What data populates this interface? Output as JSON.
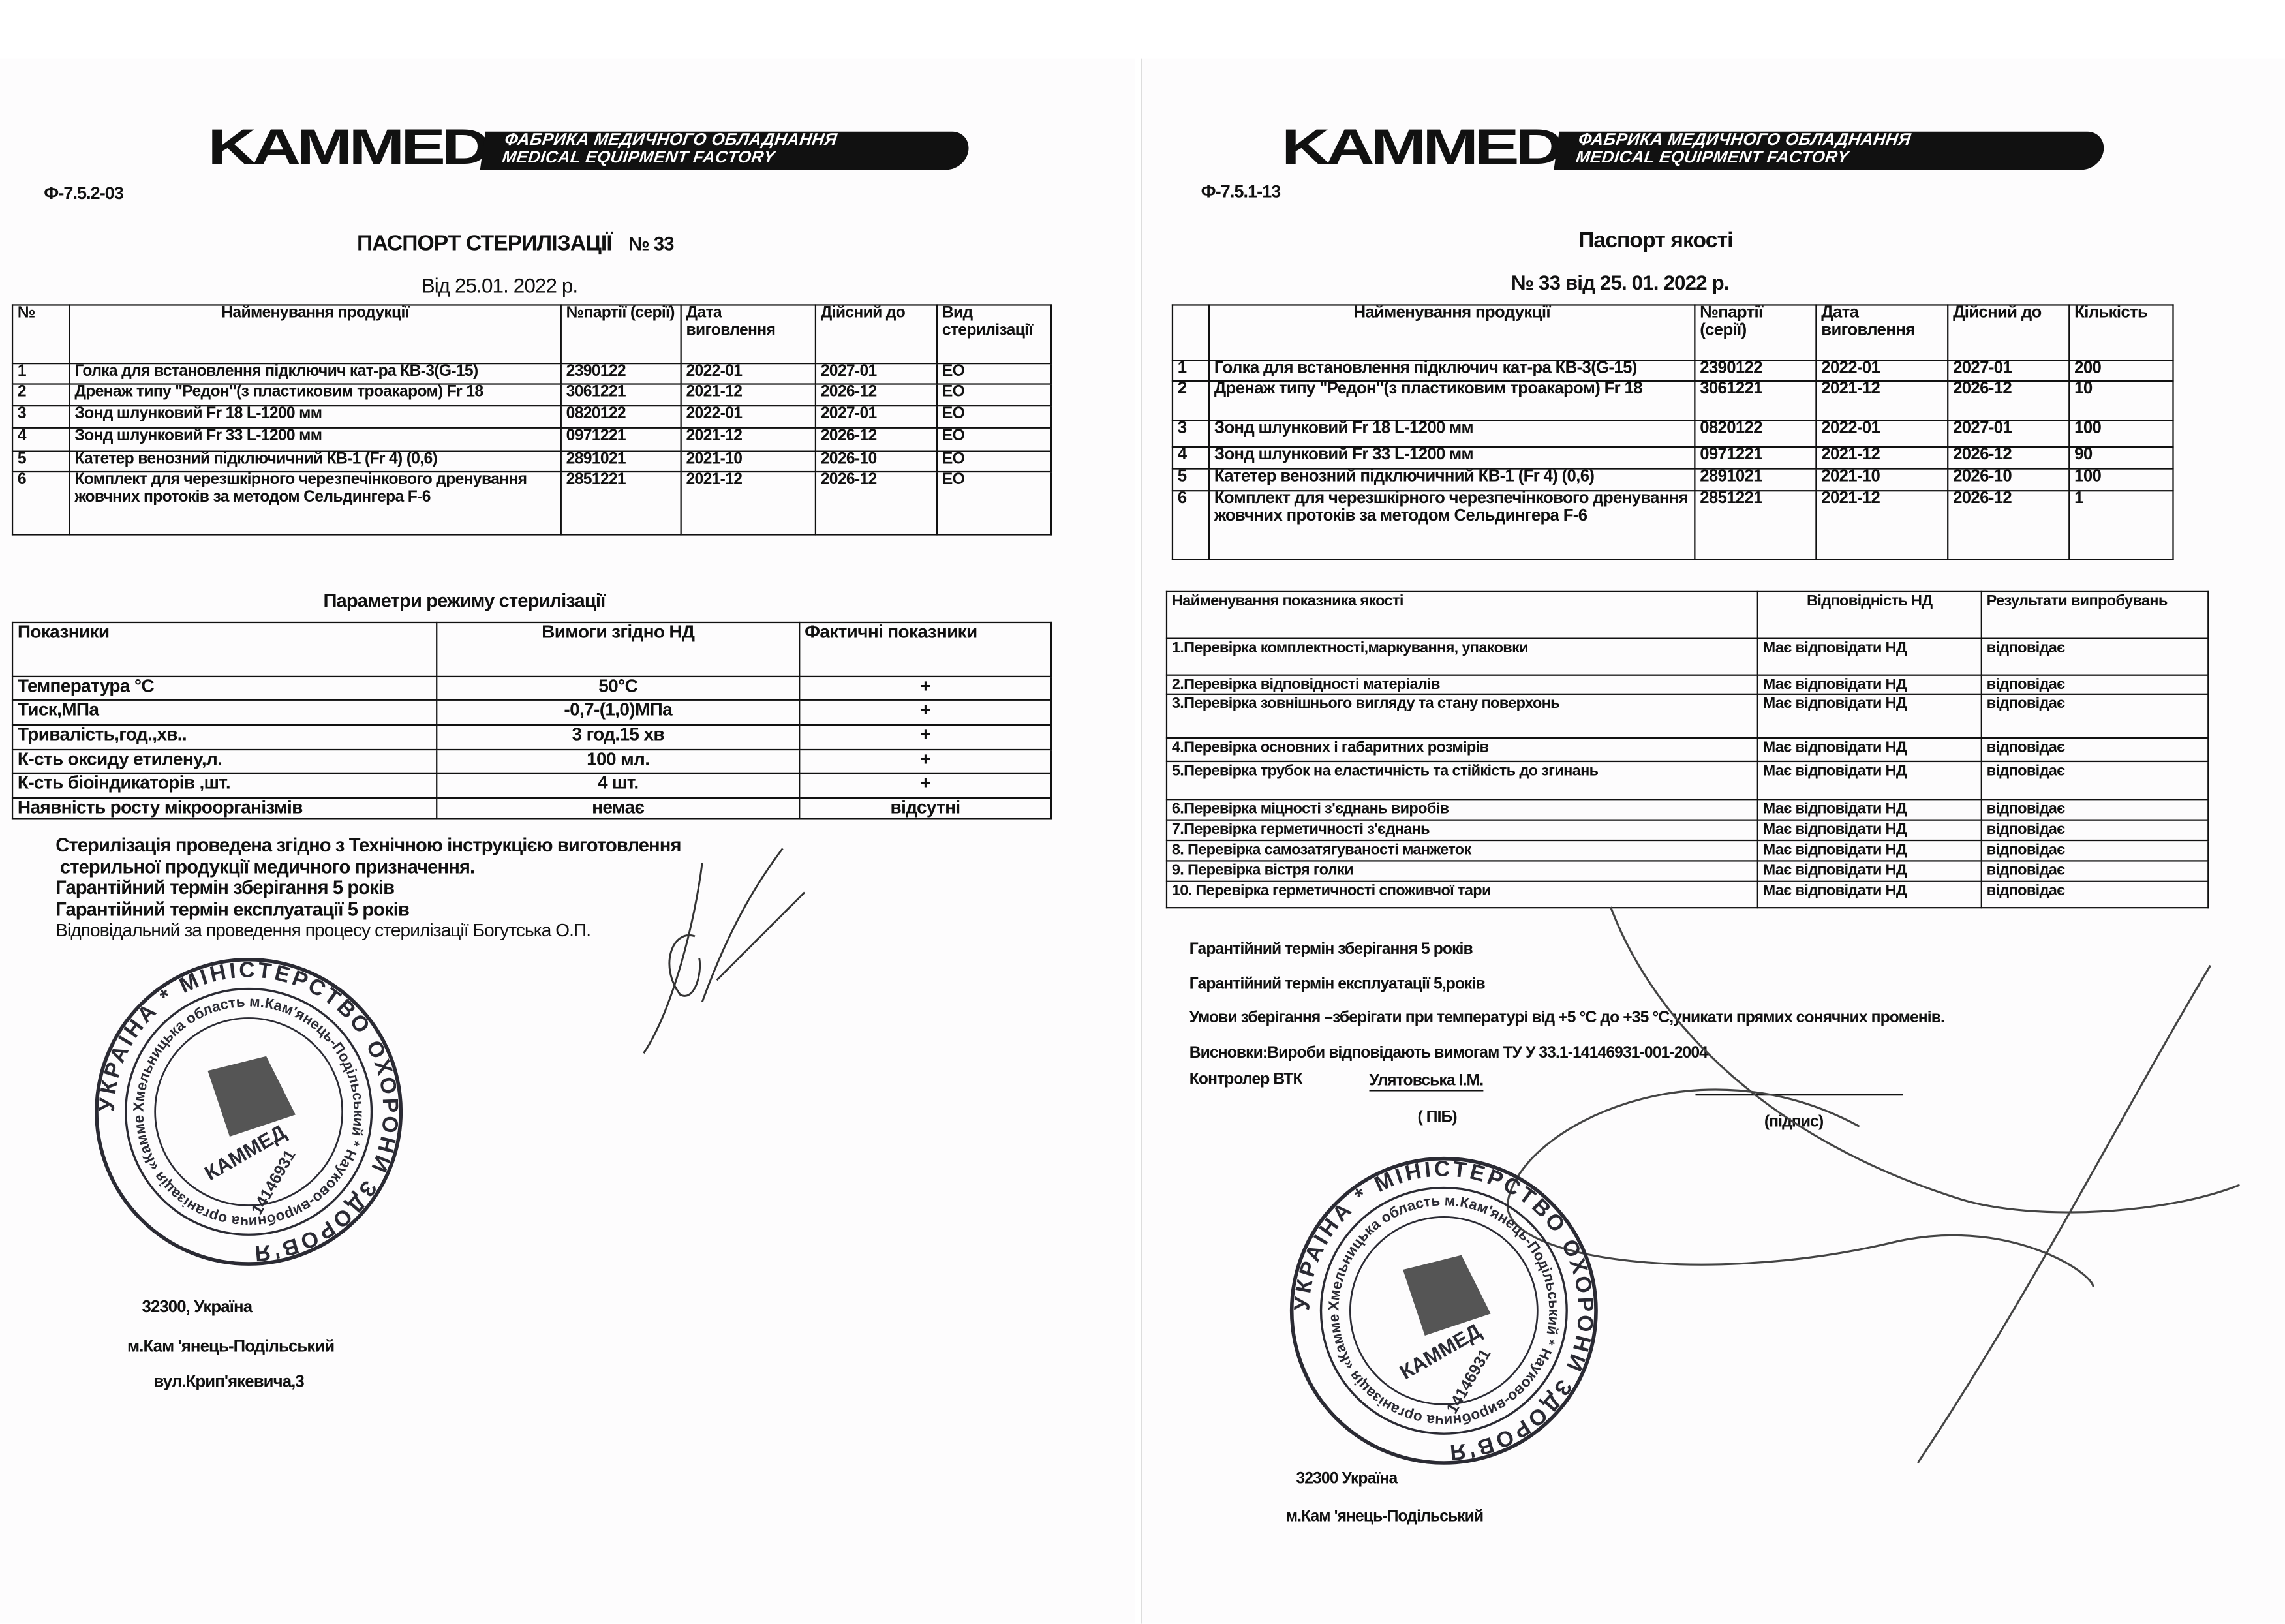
{
  "left": {
    "logo": {
      "brand": "KAMMED",
      "line1": "ФАБРИКА МЕДИЧНОГО ОБЛАДНАННЯ",
      "line2": "MEDICAL EQUIPMENT FACTORY"
    },
    "form_code": "Ф-7.5.2-03",
    "title": "ПАСПОРТ СТЕРИЛІЗАЦІЇ",
    "number": "№ 33",
    "date_line": "Від  25.01. 2022 р.",
    "products_table": {
      "headers": [
        "№",
        "Найменування продукції",
        "№партії (серії)",
        "Дата виговлення",
        "Дійсний до",
        "Вид стерилізації"
      ],
      "rows": [
        [
          "1",
          "Голка для встановлення підключич кат-ра КВ-3(G-15)",
          "2390122",
          "2022-01",
          "2027-01",
          "ЕО"
        ],
        [
          "2",
          "Дренаж типу \"Редон\"(з пластиковим троакаром) Fr 18",
          "3061221",
          "2021-12",
          "2026-12",
          "ЕО"
        ],
        [
          "3",
          "Зонд шлунковий Fr 18 L-1200 мм",
          "0820122",
          "2022-01",
          "2027-01",
          "ЕО"
        ],
        [
          "4",
          "Зонд шлунковий Fr 33 L-1200 мм",
          "0971221",
          "2021-12",
          "2026-12",
          "ЕО"
        ],
        [
          "5",
          "Катетер венозний  підключичний КВ-1 (Fr 4) (0,6)",
          "2891021",
          "2021-10",
          "2026-10",
          "ЕО"
        ],
        [
          "6",
          "Комплект для черезшкірного черезпечінкового дренування жовчних протоків за методом Сельдингера F-6",
          "2851221",
          "2021-12",
          "2026-12",
          "ЕО"
        ]
      ]
    },
    "params_title": "Параметри режиму стерилізації",
    "params_table": {
      "headers": [
        "Показники",
        "Вимоги згідно НД",
        "Фактичні показники"
      ],
      "rows": [
        [
          "Температура  °С",
          "50°С",
          "+"
        ],
        [
          "Тиск,МПа",
          "-0,7-(1,0)МПа",
          "+"
        ],
        [
          "Тривалість,год.,хв..",
          "3 год.15 хв",
          "+"
        ],
        [
          "К-сть оксиду етилену,л.",
          "100 мл.",
          "+"
        ],
        [
          "К-сть біоіндикаторів ,шт.",
          "4 шт.",
          "+"
        ],
        [
          "Наявність росту мікроорганізмів",
          "немає",
          "відсутні"
        ]
      ]
    },
    "notes": [
      "Стерилізація проведена згідно з Технічною інструкцією виготовлення",
      "стерильної продукції  медичного призначення.",
      "Гарантійний термін зберігання 5 років",
      "Гарантійний термін експлуатації 5 років"
    ],
    "responsible": "Відповідальний за проведення  процесу стерилізації Богутська О.П.",
    "address": [
      "32300, Україна",
      "м.Кам 'янець-Подільський",
      "вул.Крип'якевича,3"
    ],
    "stamp": {
      "outer": "УКРАЇНА * МІНІСТЕРСТВО ОХОРОНИ ЗДОРОВ'Я",
      "inner": "Хмельницька область м.Кам'янець-Подільський * Науково-виробнича організація «Каммед»",
      "center": "КАММЕД",
      "code": "14146931"
    }
  },
  "right": {
    "logo": {
      "brand": "KAMMED",
      "line1": "ФАБРИКА МЕДИЧНОГО ОБЛАДНАННЯ",
      "line2": "MEDICAL EQUIPMENT FACTORY"
    },
    "form_code": "Ф-7.5.1-13",
    "title": "Паспорт якості",
    "number_line": "№ 33 від 25. 01.  2022 р.",
    "products_table": {
      "headers": [
        "",
        "Найменування продукції",
        "№партії (серії)",
        "Дата виговлення",
        "Дійсний до",
        "Кількість"
      ],
      "rows": [
        [
          "1",
          "Голка для встановлення підключич кат-ра КВ-3(G-15)",
          "2390122",
          "2022-01",
          "2027-01",
          "200"
        ],
        [
          "2",
          "Дренаж типу \"Редон\"(з пластиковим троакаром) Fr 18",
          "3061221",
          "2021-12",
          "2026-12",
          "10"
        ],
        [
          "3",
          "Зонд шлунковий Fr 18 L-1200 мм",
          "0820122",
          "2022-01",
          "2027-01",
          "100"
        ],
        [
          "4",
          "Зонд шлунковий Fr 33 L-1200 мм",
          "0971221",
          "2021-12",
          "2026-12",
          "90"
        ],
        [
          "5",
          "Катетер венозний  підключичний КВ-1 (Fr 4) (0,6)",
          "2891021",
          "2021-10",
          "2026-10",
          "100"
        ],
        [
          "6",
          "Комплект для черезшкірного черезпечінкового дренування жовчних протоків за методом Сельдингера F-6",
          "2851221",
          "2021-12",
          "2026-12",
          "1"
        ]
      ]
    },
    "quality_table": {
      "headers": [
        "Найменування показника якості",
        "Відповідність  НД",
        "Результати випробувань"
      ],
      "rows": [
        [
          "1.Перевірка комплектності,маркування, упаковки",
          "Має відповідати НД",
          "відповідає"
        ],
        [
          "2.Перевірка відповідності матеріалів",
          "Має відповідати НД",
          "відповідає"
        ],
        [
          "3.Перевірка зовнішнього вигляду та стану поверхонь",
          "Має відповідати НД",
          "відповідає"
        ],
        [
          "4.Перевірка основних і габаритних розмірів",
          "Має відповідати НД",
          "відповідає"
        ],
        [
          "5.Перевірка трубок на еластичність та стійкість до згинань",
          "Має відповідати НД",
          "відповідає"
        ],
        [
          "6.Перевірка міцності з'єднань виробів",
          "Має відповідати НД",
          "відповідає"
        ],
        [
          "7.Перевірка герметичності з'єднань",
          "Має відповідати НД",
          "відповідає"
        ],
        [
          "8. Перевірка самозатягуваності манжеток",
          "Має відповідати НД",
          "відповідає"
        ],
        [
          "9. Перевірка вістря голки",
          "Має відповідати НД",
          "відповідає"
        ],
        [
          "10. Перевірка герметичності споживчої тари",
          "Має відповідати НД",
          "відповідає"
        ]
      ]
    },
    "notes": [
      "Гарантійний термін зберігання 5 років",
      "Гарантійний термін експлуатації 5,років",
      "Умови зберігання –зберігати при температурі від +5 °С до +35 °С,уникати прямих сонячних променів.",
      "Висновки:Вироби відповідають вимогам ТУ У 33.1-14146931-001-2004"
    ],
    "controller_label": "Контролер ВТК",
    "controller_name": "Улятовська І.М.",
    "name_caption": "( ПІБ)",
    "signature_caption": "(підпис)",
    "address": [
      "32300 Україна",
      "м.Кам 'янець-Подільський"
    ],
    "stamp": {
      "outer": "УКРАЇНА * МІНІСТЕРСТВО ОХОРОНИ ЗДОРОВ'Я",
      "inner": "Хмельницька область м.Кам'янець-Подільський * Науково-виробнича організація «Каммед»",
      "center": "КАММЕД",
      "code": "14146931"
    }
  }
}
